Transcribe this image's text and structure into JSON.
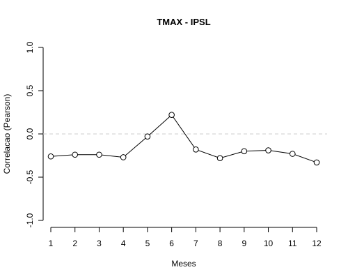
{
  "chart_data": {
    "type": "line",
    "title": "TMAX - IPSL",
    "xlabel": "Meses",
    "ylabel": "Correlacao (Pearson)",
    "x": [
      1,
      2,
      3,
      4,
      5,
      6,
      7,
      8,
      9,
      10,
      11,
      12
    ],
    "series": [
      {
        "values": [
          -0.26,
          -0.24,
          -0.24,
          -0.27,
          -0.03,
          0.22,
          -0.18,
          -0.28,
          -0.2,
          -0.19,
          -0.23,
          -0.33
        ]
      }
    ],
    "xlim": [
      1,
      12
    ],
    "ylim": [
      -1.0,
      1.0
    ],
    "x_ticks": [
      "1",
      "2",
      "3",
      "4",
      "5",
      "6",
      "7",
      "8",
      "9",
      "10",
      "11",
      "12"
    ],
    "y_ticks": [
      "-1.0",
      "-0.5",
      "0.0",
      "0.5",
      "1.0"
    ],
    "reference_line": {
      "y": 0.0,
      "style": "dashed",
      "color": "#cccccc"
    },
    "line_color": "#000000",
    "marker": "open-circle",
    "grid": false
  }
}
